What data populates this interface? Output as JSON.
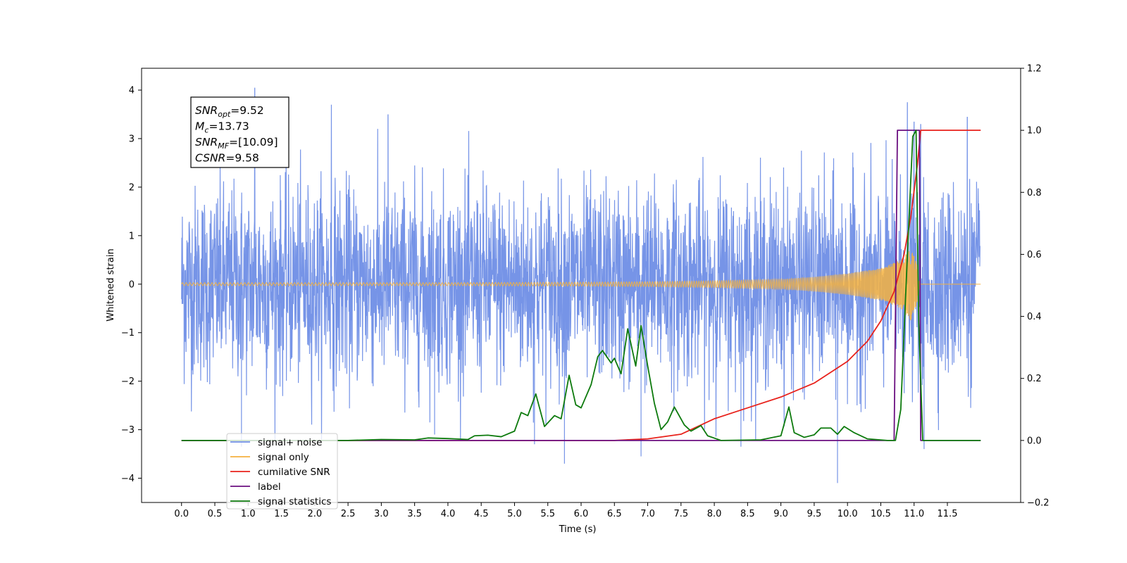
{
  "chart_data": {
    "type": "line",
    "xlabel": "Time (s)",
    "ylabel": "Whitened strain",
    "ylabel_right": "",
    "xlim": [
      -0.6,
      12.6
    ],
    "ylim": [
      -4.5,
      4.45
    ],
    "ylim_right": [
      -0.2,
      1.2
    ],
    "x_ticks": [
      "0.0",
      "0.5",
      "1.0",
      "1.5",
      "2.0",
      "2.5",
      "3.0",
      "3.5",
      "4.0",
      "4.5",
      "5.0",
      "5.5",
      "6.0",
      "6.5",
      "7.0",
      "7.5",
      "8.0",
      "8.5",
      "9.0",
      "9.5",
      "10.0",
      "10.5",
      "11.0",
      "11.5"
    ],
    "y_ticks": [
      "-4",
      "-3",
      "-2",
      "-1",
      "0",
      "1",
      "2",
      "3",
      "4"
    ],
    "y_ticks_right": [
      "-0.2",
      "0.0",
      "0.2",
      "0.4",
      "0.6",
      "0.8",
      "1.0",
      "1.2"
    ],
    "legend_position": "lower-left",
    "annotation": {
      "lines": [
        {
          "name": "SNR",
          "sub": "opt",
          "value": "=9.52"
        },
        {
          "name": "M",
          "sub": "c",
          "value": "=13.73"
        },
        {
          "name": "SNR",
          "sub": "MF",
          "value": "=[10.09]"
        },
        {
          "name": "CSNR",
          "sub": "",
          "value": "=9.58"
        }
      ]
    },
    "series": [
      {
        "name": "signal+ noise",
        "color": "#6f8ee6",
        "axis": "left",
        "description": "whitened noisy strain, roughly uniform amplitude about ±2.3 with spikes up to ±4",
        "envelope_abs": 2.3,
        "spikes": [
          {
            "x": 1.1,
            "y": 4.05
          },
          {
            "x": 2.25,
            "y": 3.7
          },
          {
            "x": 3.1,
            "y": 3.5
          },
          {
            "x": 10.9,
            "y": 3.75
          },
          {
            "x": 11.0,
            "y": 3.35
          },
          {
            "x": 11.1,
            "y": 3.3
          },
          {
            "x": 11.8,
            "y": 3.45
          },
          {
            "x": 9.85,
            "y": -4.1
          },
          {
            "x": 5.75,
            "y": -3.7
          },
          {
            "x": 6.9,
            "y": -3.55
          },
          {
            "x": 0.9,
            "y": -3.35
          },
          {
            "x": 8.4,
            "y": -3.35
          },
          {
            "x": 11.15,
            "y": -3.4
          },
          {
            "x": 3.8,
            "y": -3.1
          },
          {
            "x": 5.3,
            "y": -3.3
          }
        ]
      },
      {
        "name": "signal only",
        "color": "#f5b13f",
        "axis": "left",
        "description": "chirp waveform, amplitude growing with time until merger near 11.05 s",
        "envelope": [
          {
            "x": 0.0,
            "y": 0.03
          },
          {
            "x": 4.0,
            "y": 0.03
          },
          {
            "x": 6.0,
            "y": 0.04
          },
          {
            "x": 7.0,
            "y": 0.05
          },
          {
            "x": 8.0,
            "y": 0.07
          },
          {
            "x": 9.0,
            "y": 0.1
          },
          {
            "x": 9.5,
            "y": 0.15
          },
          {
            "x": 10.0,
            "y": 0.22
          },
          {
            "x": 10.5,
            "y": 0.33
          },
          {
            "x": 10.8,
            "y": 0.5
          },
          {
            "x": 10.95,
            "y": 0.75
          },
          {
            "x": 11.05,
            "y": 0.4
          },
          {
            "x": 11.1,
            "y": 0.0
          },
          {
            "x": 12.0,
            "y": 0.0
          }
        ]
      },
      {
        "name": "cumilative SNR",
        "color": "#e8221c",
        "axis": "right",
        "points": [
          {
            "x": 0.0,
            "y": 0.0
          },
          {
            "x": 6.5,
            "y": 0.0
          },
          {
            "x": 7.0,
            "y": 0.005
          },
          {
            "x": 7.5,
            "y": 0.02
          },
          {
            "x": 8.0,
            "y": 0.07
          },
          {
            "x": 8.5,
            "y": 0.105
          },
          {
            "x": 9.0,
            "y": 0.14
          },
          {
            "x": 9.5,
            "y": 0.185
          },
          {
            "x": 10.0,
            "y": 0.255
          },
          {
            "x": 10.3,
            "y": 0.32
          },
          {
            "x": 10.5,
            "y": 0.385
          },
          {
            "x": 10.7,
            "y": 0.48
          },
          {
            "x": 10.85,
            "y": 0.6
          },
          {
            "x": 10.95,
            "y": 0.72
          },
          {
            "x": 11.05,
            "y": 0.89
          },
          {
            "x": 11.1,
            "y": 1.0
          },
          {
            "x": 12.0,
            "y": 1.0
          }
        ]
      },
      {
        "name": "label",
        "color": "#6b0f80",
        "axis": "right",
        "points": [
          {
            "x": 0.0,
            "y": 0.0
          },
          {
            "x": 10.7,
            "y": 0.0
          },
          {
            "x": 10.75,
            "y": 1.0
          },
          {
            "x": 11.08,
            "y": 1.0
          },
          {
            "x": 11.1,
            "y": 0.0
          },
          {
            "x": 12.0,
            "y": 0.0
          }
        ]
      },
      {
        "name": "signal statistics",
        "color": "#0d7a0d",
        "axis": "right",
        "points": [
          {
            "x": 0.0,
            "y": 0.0
          },
          {
            "x": 2.5,
            "y": 0.0
          },
          {
            "x": 3.0,
            "y": 0.003
          },
          {
            "x": 3.5,
            "y": 0.002
          },
          {
            "x": 3.7,
            "y": 0.008
          },
          {
            "x": 4.0,
            "y": 0.006
          },
          {
            "x": 4.3,
            "y": 0.003
          },
          {
            "x": 4.4,
            "y": 0.015
          },
          {
            "x": 4.6,
            "y": 0.017
          },
          {
            "x": 4.8,
            "y": 0.012
          },
          {
            "x": 5.0,
            "y": 0.03
          },
          {
            "x": 5.1,
            "y": 0.09
          },
          {
            "x": 5.2,
            "y": 0.08
          },
          {
            "x": 5.32,
            "y": 0.15
          },
          {
            "x": 5.45,
            "y": 0.045
          },
          {
            "x": 5.6,
            "y": 0.08
          },
          {
            "x": 5.7,
            "y": 0.07
          },
          {
            "x": 5.82,
            "y": 0.21
          },
          {
            "x": 5.92,
            "y": 0.115
          },
          {
            "x": 6.0,
            "y": 0.105
          },
          {
            "x": 6.15,
            "y": 0.18
          },
          {
            "x": 6.25,
            "y": 0.27
          },
          {
            "x": 6.32,
            "y": 0.29
          },
          {
            "x": 6.45,
            "y": 0.25
          },
          {
            "x": 6.5,
            "y": 0.265
          },
          {
            "x": 6.6,
            "y": 0.215
          },
          {
            "x": 6.7,
            "y": 0.36
          },
          {
            "x": 6.82,
            "y": 0.24
          },
          {
            "x": 6.9,
            "y": 0.37
          },
          {
            "x": 7.0,
            "y": 0.24
          },
          {
            "x": 7.1,
            "y": 0.12
          },
          {
            "x": 7.2,
            "y": 0.035
          },
          {
            "x": 7.3,
            "y": 0.06
          },
          {
            "x": 7.4,
            "y": 0.108
          },
          {
            "x": 7.55,
            "y": 0.05
          },
          {
            "x": 7.65,
            "y": 0.03
          },
          {
            "x": 7.8,
            "y": 0.048
          },
          {
            "x": 7.9,
            "y": 0.015
          },
          {
            "x": 8.1,
            "y": 0.0
          },
          {
            "x": 8.7,
            "y": 0.002
          },
          {
            "x": 9.0,
            "y": 0.015
          },
          {
            "x": 9.12,
            "y": 0.108
          },
          {
            "x": 9.2,
            "y": 0.025
          },
          {
            "x": 9.35,
            "y": 0.01
          },
          {
            "x": 9.5,
            "y": 0.018
          },
          {
            "x": 9.6,
            "y": 0.04
          },
          {
            "x": 9.75,
            "y": 0.04
          },
          {
            "x": 9.85,
            "y": 0.02
          },
          {
            "x": 9.95,
            "y": 0.045
          },
          {
            "x": 10.1,
            "y": 0.025
          },
          {
            "x": 10.3,
            "y": 0.005
          },
          {
            "x": 10.6,
            "y": 0.0
          },
          {
            "x": 10.72,
            "y": 0.0
          },
          {
            "x": 10.8,
            "y": 0.1
          },
          {
            "x": 10.9,
            "y": 0.6
          },
          {
            "x": 10.98,
            "y": 0.98
          },
          {
            "x": 11.03,
            "y": 1.0
          },
          {
            "x": 11.07,
            "y": 0.38
          },
          {
            "x": 11.13,
            "y": 0.0
          },
          {
            "x": 12.0,
            "y": 0.0
          }
        ]
      }
    ],
    "legend": [
      {
        "label": "signal+ noise",
        "color": "#6f8ee6"
      },
      {
        "label": "signal only",
        "color": "#f5b13f"
      },
      {
        "label": "cumilative SNR",
        "color": "#e8221c"
      },
      {
        "label": "label",
        "color": "#6b0f80"
      },
      {
        "label": "signal statistics",
        "color": "#0d7a0d"
      }
    ]
  }
}
